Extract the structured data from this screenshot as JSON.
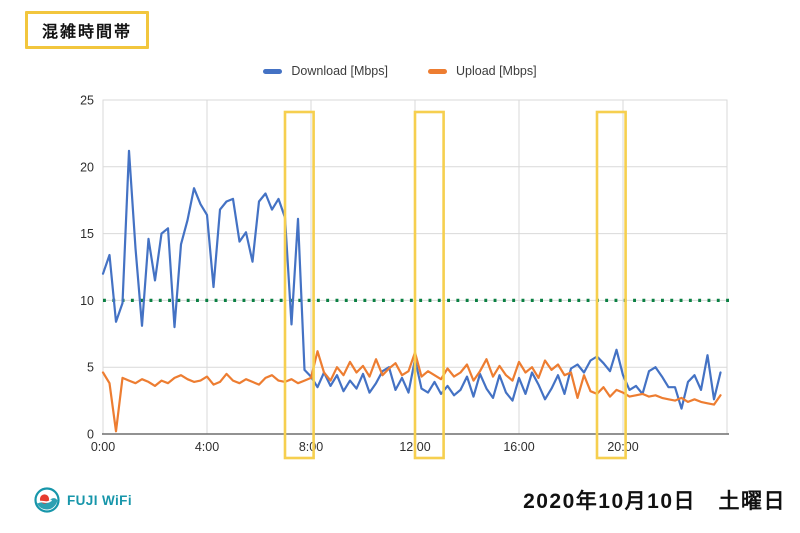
{
  "header": {
    "title": "混雑時間帯"
  },
  "legend": [
    {
      "label": "Download [Mbps]",
      "color": "#4472C4"
    },
    {
      "label": "Upload [Mbps]",
      "color": "#ED7D31"
    }
  ],
  "footer": {
    "brand_name": "FUJI WiFi",
    "date": "2020年10月10日　土曜日"
  },
  "chart_data": {
    "type": "line",
    "title": "",
    "xlabel": "",
    "ylabel": "",
    "xlim": [
      0,
      24
    ],
    "ylim": [
      0,
      25
    ],
    "y_ticks": [
      0,
      5,
      10,
      15,
      20,
      25
    ],
    "x_tick_hours": [
      0,
      4,
      8,
      12,
      16,
      20
    ],
    "x_tick_labels": [
      "0:00",
      "4:00",
      "8:00",
      "12:00",
      "16:00",
      "20:00"
    ],
    "grid": true,
    "legend_position": "top-center",
    "sample_interval_minutes": 15,
    "series": [
      {
        "name": "Download [Mbps]",
        "color": "#4472C4",
        "values": [
          12.0,
          13.4,
          8.4,
          9.8,
          21.2,
          13.9,
          8.1,
          14.6,
          11.5,
          15.0,
          15.4,
          8.0,
          14.2,
          16.0,
          18.4,
          17.2,
          16.4,
          11.0,
          16.8,
          17.4,
          17.6,
          14.4,
          15.1,
          12.9,
          17.4,
          18.0,
          16.8,
          17.6,
          16.2,
          8.2,
          16.1,
          4.8,
          4.3,
          3.5,
          4.6,
          3.6,
          4.4,
          3.2,
          4.0,
          3.4,
          4.5,
          3.1,
          3.8,
          4.7,
          5.0,
          3.3,
          4.2,
          3.1,
          5.6,
          3.4,
          3.1,
          3.9,
          3.0,
          3.6,
          2.9,
          3.3,
          4.3,
          2.8,
          4.5,
          3.4,
          2.7,
          4.4,
          3.1,
          2.5,
          4.2,
          3.0,
          4.6,
          3.7,
          2.6,
          3.4,
          4.4,
          3.0,
          4.9,
          5.2,
          4.6,
          5.5,
          5.8,
          5.3,
          4.7,
          6.3,
          4.4,
          3.3,
          3.6,
          3.0,
          4.7,
          5.0,
          4.3,
          3.5,
          3.5,
          1.9,
          3.9,
          4.4,
          3.3,
          5.9,
          2.6,
          4.6
        ]
      },
      {
        "name": "Upload [Mbps]",
        "color": "#ED7D31",
        "values": [
          4.6,
          3.8,
          0.2,
          4.2,
          4.0,
          3.8,
          4.1,
          3.9,
          3.6,
          4.0,
          3.8,
          4.2,
          4.4,
          4.1,
          3.9,
          4.0,
          4.3,
          3.7,
          3.9,
          4.5,
          4.0,
          3.8,
          4.1,
          3.9,
          3.7,
          4.2,
          4.4,
          4.0,
          3.9,
          4.1,
          3.8,
          4.0,
          4.2,
          6.2,
          4.6,
          4.0,
          5.0,
          4.4,
          5.4,
          4.6,
          5.1,
          4.3,
          5.6,
          4.4,
          4.9,
          5.3,
          4.4,
          4.7,
          6.1,
          4.3,
          4.7,
          4.4,
          4.1,
          4.9,
          4.3,
          4.6,
          5.2,
          4.0,
          4.7,
          5.6,
          4.3,
          5.1,
          4.4,
          4.0,
          5.4,
          4.6,
          5.0,
          4.2,
          5.5,
          4.8,
          5.2,
          4.4,
          4.6,
          2.7,
          4.4,
          3.2,
          3.0,
          3.5,
          2.8,
          3.3,
          3.1,
          2.8,
          2.9,
          3.0,
          2.8,
          2.9,
          2.7,
          2.6,
          2.5,
          2.7,
          2.4,
          2.6,
          2.4,
          2.3,
          2.2,
          2.9
        ]
      }
    ],
    "threshold_line": {
      "value": 10,
      "color": "#0B8043",
      "style": "dotted"
    },
    "highlights": [
      {
        "label": "morning-congestion",
        "start_hour": 7.0,
        "end_hour": 8.1
      },
      {
        "label": "noon-congestion",
        "start_hour": 12.0,
        "end_hour": 13.1
      },
      {
        "label": "evening-congestion",
        "start_hour": 19.0,
        "end_hour": 20.1
      }
    ],
    "highlight_color": "#F6CF4F",
    "colors": {
      "grid": "#D9D9D9",
      "axis": "#6F6F6F",
      "tick_text": "#2E2E2E"
    }
  }
}
